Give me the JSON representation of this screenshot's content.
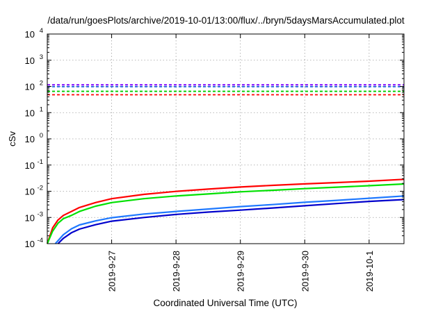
{
  "chart_data": {
    "type": "line",
    "title": "/data/run/goesPlots/archive/2019-10-01/13:00/flux/../bryn/5daysMarsAccumulated.plot",
    "xlabel": "Coordinated Universal Time (UTC)",
    "ylabel": "cSv",
    "yscale": "log",
    "ylim": [
      0.0001,
      10000
    ],
    "xlim": [
      "2019-09-26 00:00",
      "2019-10-01 13:00"
    ],
    "x_ticks": [
      "2019-09-27",
      "2019-09-28",
      "2019-09-29",
      "2019-09-30",
      "2019-10-01"
    ],
    "x_tick_labels": [
      "2019-9-27",
      "2019-9-28",
      "2019-9-29",
      "2019-9-30",
      "2019-10-1"
    ],
    "y_tick_labels": [
      {
        "base": "10",
        "exp": "-4",
        "value": 0.0001
      },
      {
        "base": "10",
        "exp": "-3",
        "value": 0.001
      },
      {
        "base": "10",
        "exp": "-2",
        "value": 0.01
      },
      {
        "base": "10",
        "exp": "-1",
        "value": 0.1
      },
      {
        "base": "10",
        "exp": "0",
        "value": 1
      },
      {
        "base": "10",
        "exp": "1",
        "value": 10
      },
      {
        "base": "10",
        "exp": "2",
        "value": 100
      },
      {
        "base": "10",
        "exp": "3",
        "value": 1000
      },
      {
        "base": "10",
        "exp": "4",
        "value": 10000
      }
    ],
    "grid": true,
    "threshold_lines": [
      {
        "color": "#7f00ff",
        "value": 115,
        "style": "dashed"
      },
      {
        "color": "#1e64dc",
        "value": 98,
        "style": "dashed"
      },
      {
        "color": "#00cc00",
        "value": 65,
        "style": "dashed"
      },
      {
        "color": "#ff0000",
        "value": 48,
        "style": "dashed"
      }
    ],
    "series": [
      {
        "color": "#ff0000",
        "x": [
          "2019-09-26 00:00",
          "2019-09-26 02:00",
          "2019-09-26 04:00",
          "2019-09-26 06:00",
          "2019-09-26 09:00",
          "2019-09-26 12:00",
          "2019-09-26 18:00",
          "2019-09-27 00:00",
          "2019-09-27 12:00",
          "2019-09-28 00:00",
          "2019-09-28 12:00",
          "2019-09-29 00:00",
          "2019-09-29 12:00",
          "2019-09-30 00:00",
          "2019-09-30 12:00",
          "2019-10-01 00:00",
          "2019-10-01 13:00"
        ],
        "values": [
          0.0001,
          0.0004,
          0.0008,
          0.0012,
          0.0017,
          0.0024,
          0.0037,
          0.0052,
          0.0076,
          0.0099,
          0.0121,
          0.0145,
          0.0168,
          0.0191,
          0.0215,
          0.0242,
          0.0285
        ]
      },
      {
        "color": "#00e000",
        "x": [
          "2019-09-26 00:00",
          "2019-09-26 02:00",
          "2019-09-26 04:00",
          "2019-09-26 06:00",
          "2019-09-26 09:00",
          "2019-09-26 12:00",
          "2019-09-26 18:00",
          "2019-09-27 00:00",
          "2019-09-27 12:00",
          "2019-09-28 00:00",
          "2019-09-28 12:00",
          "2019-09-29 00:00",
          "2019-09-29 12:00",
          "2019-09-30 00:00",
          "2019-09-30 12:00",
          "2019-10-01 00:00",
          "2019-10-01 13:00"
        ],
        "values": [
          0.0001,
          0.0003,
          0.0006,
          0.0009,
          0.0012,
          0.0017,
          0.0027,
          0.0037,
          0.0052,
          0.0066,
          0.0079,
          0.0095,
          0.0109,
          0.0126,
          0.0143,
          0.0163,
          0.019
        ]
      },
      {
        "color": "#1e78ff",
        "x": [
          "2019-09-26 03:00",
          "2019-09-26 06:00",
          "2019-09-26 09:00",
          "2019-09-26 12:00",
          "2019-09-26 18:00",
          "2019-09-27 00:00",
          "2019-09-27 12:00",
          "2019-09-28 00:00",
          "2019-09-28 12:00",
          "2019-09-29 00:00",
          "2019-09-29 12:00",
          "2019-09-30 00:00",
          "2019-09-30 12:00",
          "2019-10-01 00:00",
          "2019-10-01 13:00"
        ],
        "values": [
          0.0001,
          0.00022,
          0.00037,
          0.00052,
          0.00074,
          0.00098,
          0.00135,
          0.0017,
          0.0021,
          0.0026,
          0.0031,
          0.0038,
          0.0045,
          0.0054,
          0.0066
        ]
      },
      {
        "color": "#0000cc",
        "x": [
          "2019-09-26 04:00",
          "2019-09-26 06:00",
          "2019-09-26 09:00",
          "2019-09-26 12:00",
          "2019-09-26 18:00",
          "2019-09-27 00:00",
          "2019-09-27 12:00",
          "2019-09-28 00:00",
          "2019-09-28 12:00",
          "2019-09-29 00:00",
          "2019-09-29 12:00",
          "2019-09-30 00:00",
          "2019-09-30 12:00",
          "2019-10-01 00:00",
          "2019-10-01 13:00"
        ],
        "values": [
          0.0001,
          0.00016,
          0.00026,
          0.00036,
          0.00053,
          0.00072,
          0.001,
          0.0013,
          0.0016,
          0.0019,
          0.0023,
          0.0028,
          0.0034,
          0.0041,
          0.0048
        ]
      }
    ]
  }
}
